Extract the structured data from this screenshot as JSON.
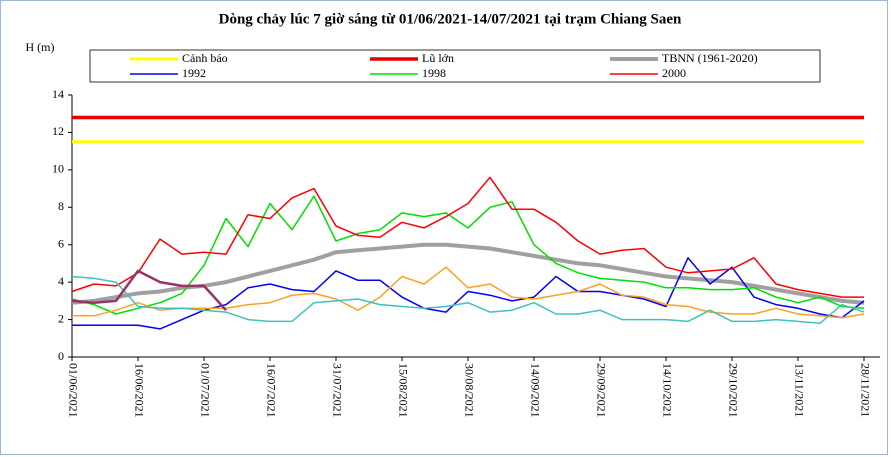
{
  "chart_data": {
    "type": "line",
    "title": "Dòng chảy lúc 7 giờ sáng từ 01/06/2021-14/07/2021 tại trạm Chiang Saen",
    "y_label": "H (m)",
    "categories": [
      "01/06/2021",
      null,
      null,
      "16/06/2021",
      null,
      null,
      "01/07/2021",
      null,
      null,
      "16/07/2021",
      null,
      null,
      "31/07/2021",
      null,
      null,
      "15/08/2021",
      null,
      null,
      "30/08/2021",
      null,
      null,
      "14/09/2021",
      null,
      null,
      "29/09/2021",
      null,
      null,
      "14/10/2021",
      null,
      null,
      "29/10/2021",
      null,
      null,
      "13/11/2021",
      null,
      null,
      "28/11/2021"
    ],
    "ylim": [
      0,
      14
    ],
    "yticks": [
      0,
      2,
      4,
      6,
      8,
      10,
      12,
      14
    ],
    "series": [
      {
        "name": "Cảnh báo",
        "color": "#ffff00",
        "line_width": 3,
        "values": [
          11.5,
          11.5,
          11.5,
          11.5,
          11.5,
          11.5,
          11.5,
          11.5,
          11.5,
          11.5,
          11.5,
          11.5,
          11.5,
          11.5,
          11.5,
          11.5,
          11.5,
          11.5,
          11.5,
          11.5,
          11.5,
          11.5,
          11.5,
          11.5,
          11.5,
          11.5,
          11.5,
          11.5,
          11.5,
          11.5,
          11.5,
          11.5,
          11.5,
          11.5,
          11.5,
          11.5,
          11.5
        ]
      },
      {
        "name": "Lũ lớn",
        "color": "#e60000",
        "line_width": 3.5,
        "values": [
          12.8,
          12.8,
          12.8,
          12.8,
          12.8,
          12.8,
          12.8,
          12.8,
          12.8,
          12.8,
          12.8,
          12.8,
          12.8,
          12.8,
          12.8,
          12.8,
          12.8,
          12.8,
          12.8,
          12.8,
          12.8,
          12.8,
          12.8,
          12.8,
          12.8,
          12.8,
          12.8,
          12.8,
          12.8,
          12.8,
          12.8,
          12.8,
          12.8,
          12.8,
          12.8,
          12.8,
          12.8
        ]
      },
      {
        "name": "TBNN (1961-2020)",
        "color": "#a0a0a0",
        "line_width": 4,
        "values": [
          2.9,
          3.0,
          3.2,
          3.4,
          3.5,
          3.7,
          3.8,
          4.0,
          4.3,
          4.6,
          4.9,
          5.2,
          5.6,
          5.7,
          5.8,
          5.9,
          6.0,
          6.0,
          5.9,
          5.8,
          5.6,
          5.4,
          5.2,
          5.0,
          4.9,
          4.7,
          4.5,
          4.3,
          4.2,
          4.1,
          4.0,
          3.8,
          3.6,
          3.4,
          3.2,
          3.0,
          2.9
        ]
      },
      {
        "name": "1992",
        "color": "#0000ff",
        "line_width": 1.5,
        "values": [
          1.7,
          1.7,
          1.7,
          1.7,
          1.5,
          2.0,
          2.5,
          2.8,
          3.7,
          3.9,
          3.6,
          3.5,
          4.6,
          4.1,
          4.1,
          3.2,
          2.6,
          2.4,
          3.5,
          3.3,
          3.0,
          3.2,
          4.3,
          3.5,
          3.5,
          3.3,
          3.1,
          2.7,
          5.3,
          3.9,
          4.8,
          3.2,
          2.8,
          2.6,
          2.3,
          2.1,
          3.0
        ]
      },
      {
        "name": "1998",
        "color": "#00e000",
        "line_width": 1.5,
        "values": [
          3.1,
          2.8,
          2.3,
          2.6,
          2.9,
          3.4,
          4.9,
          7.4,
          5.9,
          8.2,
          6.8,
          8.6,
          6.2,
          6.6,
          6.8,
          7.7,
          7.5,
          7.7,
          6.9,
          8.0,
          8.3,
          6.0,
          5.0,
          4.5,
          4.2,
          4.1,
          4.0,
          3.7,
          3.7,
          3.6,
          3.6,
          3.7,
          3.2,
          2.9,
          3.2,
          2.7,
          2.6
        ]
      },
      {
        "name": "2000",
        "color": "#ff0000",
        "line_width": 1.5,
        "values": [
          3.5,
          3.9,
          3.8,
          4.5,
          6.3,
          5.5,
          5.6,
          5.5,
          7.6,
          7.4,
          8.5,
          9.0,
          7.0,
          6.5,
          6.4,
          7.2,
          6.9,
          7.5,
          8.2,
          9.6,
          7.9,
          7.9,
          7.2,
          6.2,
          5.5,
          5.7,
          5.8,
          4.8,
          4.5,
          4.6,
          4.7,
          5.3,
          3.9,
          3.6,
          3.4,
          3.2,
          3.2
        ]
      },
      {
        "color": "#ffa020",
        "line_width": 1.5,
        "values": [
          2.2,
          2.2,
          2.5,
          2.9,
          2.5,
          2.6,
          2.6,
          2.6,
          2.8,
          2.9,
          3.3,
          3.4,
          3.1,
          2.5,
          3.2,
          4.3,
          3.9,
          4.8,
          3.7,
          3.9,
          3.2,
          3.1,
          3.3,
          3.5,
          3.9,
          3.3,
          3.2,
          2.8,
          2.7,
          2.4,
          2.3,
          2.3,
          2.6,
          2.3,
          2.2,
          2.1,
          2.3
        ]
      },
      {
        "color": "#40c0c0",
        "line_width": 1.5,
        "values": [
          4.3,
          4.2,
          4.0,
          2.7,
          2.6,
          2.6,
          2.5,
          2.4,
          2.0,
          1.9,
          1.9,
          2.9,
          3.0,
          3.1,
          2.8,
          2.7,
          2.6,
          2.7,
          2.9,
          2.4,
          2.5,
          2.9,
          2.3,
          2.3,
          2.5,
          2.0,
          2.0,
          2.0,
          1.9,
          2.5,
          1.9,
          1.9,
          2.0,
          1.9,
          1.8,
          2.8,
          2.4
        ]
      },
      {
        "color": "#993366",
        "line_width": 2.5,
        "values": [
          3.0,
          2.9,
          3.0,
          4.6,
          4.0,
          3.8,
          3.8,
          2.5,
          null,
          null,
          null,
          null,
          null,
          null,
          null,
          null,
          null,
          null,
          null,
          null,
          null,
          null,
          null,
          null,
          null,
          null,
          null,
          null,
          null,
          null,
          null,
          null,
          null,
          null,
          null,
          null,
          null
        ]
      }
    ]
  }
}
